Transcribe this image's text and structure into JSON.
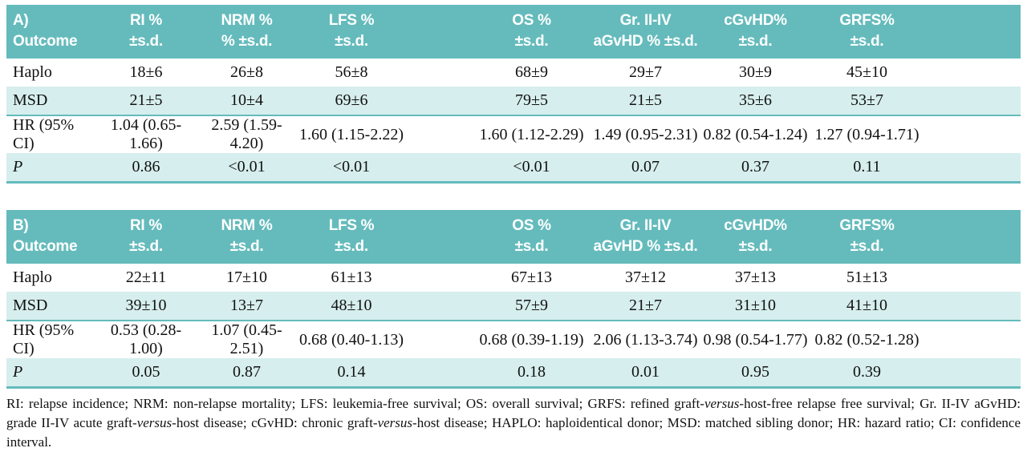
{
  "colors": {
    "header_teal": "#65bbbc",
    "band_aqua": "#d6eeed",
    "text": "#111111",
    "header_text": "#ffffff"
  },
  "tables": [
    {
      "title": "A) Outcome",
      "columns": [
        {
          "line1": "RI %",
          "line2": "±s.d."
        },
        {
          "line1": "NRM %",
          "line2": "% ±s.d."
        },
        {
          "line1": "LFS %",
          "line2": "±s.d."
        },
        {
          "line1": "OS %",
          "line2": "±s.d."
        },
        {
          "line1": "Gr. II-IV",
          "line2": "aGvHD % ±s.d."
        },
        {
          "line1": "cGvHD%",
          "line2": "±s.d."
        },
        {
          "line1": "GRFS%",
          "line2": "±s.d."
        }
      ],
      "rows": [
        {
          "label": "Haplo",
          "values": [
            "18±6",
            "26±8",
            "56±8",
            "68±9",
            "29±7",
            "30±9",
            "45±10"
          ]
        },
        {
          "label": "MSD",
          "values": [
            "21±5",
            "10±4",
            "69±6",
            "79±5",
            "21±5",
            "35±6",
            "53±7"
          ]
        },
        {
          "label": "HR (95% CI)",
          "values": [
            "1.04 (0.65-1.66)",
            "2.59 (1.59-4.20)",
            "1.60 (1.15-2.22)",
            "1.60 (1.12-2.29)",
            "1.49 (0.95-2.31)",
            "0.82 (0.54-1.24)",
            "1.27 (0.94-1.71)"
          ]
        },
        {
          "label": "P",
          "values": [
            "0.86",
            "<0.01",
            "<0.01",
            "<0.01",
            "0.07",
            "0.37",
            "0.11"
          ]
        }
      ]
    },
    {
      "title": "B) Outcome",
      "columns": [
        {
          "line1": "RI %",
          "line2": "±s.d."
        },
        {
          "line1": "NRM %",
          "line2": "±s.d."
        },
        {
          "line1": "LFS %",
          "line2": "±s.d."
        },
        {
          "line1": "OS %",
          "line2": "±s.d."
        },
        {
          "line1": "Gr. II-IV",
          "line2": "aGvHD % ±s.d."
        },
        {
          "line1": "cGvHD%",
          "line2": "±s.d."
        },
        {
          "line1": "GRFS%",
          "line2": "±s.d."
        }
      ],
      "rows": [
        {
          "label": "Haplo",
          "values": [
            "22±11",
            "17±10",
            "61±13",
            "67±13",
            "37±12",
            "37±13",
            "51±13"
          ]
        },
        {
          "label": "MSD",
          "values": [
            "39±10",
            "13±7",
            "48±10",
            "57±9",
            "21±7",
            "31±10",
            "41±10"
          ]
        },
        {
          "label": "HR (95% CI)",
          "values": [
            "0.53 (0.28-1.00)",
            "1.07 (0.45-2.51)",
            "0.68 (0.40-1.13)",
            "0.68 (0.39-1.19)",
            "2.06 (1.13-3.74)",
            "0.98 (0.54-1.77)",
            "0.82 (0.52-1.28)"
          ]
        },
        {
          "label": "P",
          "values": [
            "0.05",
            "0.87",
            "0.14",
            "0.18",
            "0.01",
            "0.95",
            "0.39"
          ]
        }
      ]
    }
  ],
  "footnote": {
    "segments": [
      {
        "text": "RI: relapse incidence; NRM: non-relapse mortality; LFS: leukemia-free survival; OS: overall survival; GRFS: refined graft-",
        "italic": false
      },
      {
        "text": "versus",
        "italic": true
      },
      {
        "text": "-host-free relapse free survival; Gr. II-IV aGvHD: grade II-IV acute graft-",
        "italic": false
      },
      {
        "text": "versus",
        "italic": true
      },
      {
        "text": "-host disease; cGvHD: chronic graft-",
        "italic": false
      },
      {
        "text": "versus",
        "italic": true
      },
      {
        "text": "-host disease; HAPLO: haploidentical donor; MSD: matched sibling donor; HR: hazard ratio; CI: confidence interval.",
        "italic": false
      }
    ]
  }
}
